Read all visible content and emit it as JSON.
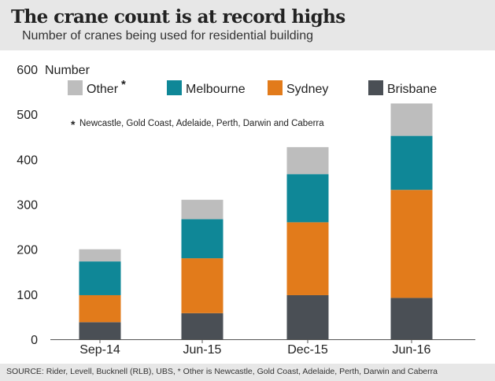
{
  "header": {
    "title": "The crane count is at record highs",
    "subtitle": "Number of cranes being used for residential building"
  },
  "footer": {
    "source": "SOURCE: Rider, Levell, Bucknell (RLB), UBS, * Other is Newcastle, Gold Coast, Adelaide, Perth, Darwin and Caberra"
  },
  "chart_data": {
    "type": "bar",
    "stacked": true,
    "title": "The crane count is at record highs",
    "subtitle": "Number of cranes being used for residential building",
    "ylabel": "Number",
    "xlabel": "",
    "ylim": [
      0,
      600
    ],
    "yticks": [
      0,
      100,
      200,
      300,
      400,
      500,
      600
    ],
    "grid": false,
    "categories": [
      "Sep-14",
      "Jun-15",
      "Dec-15",
      "Jun-16"
    ],
    "series": [
      {
        "name": "Brisbane",
        "color": "#4a4f55",
        "values": [
          38,
          58,
          98,
          92
        ]
      },
      {
        "name": "Sydney",
        "color": "#e27b1b",
        "values": [
          60,
          122,
          162,
          240
        ]
      },
      {
        "name": "Melbourne",
        "color": "#0f8797",
        "values": [
          75,
          87,
          107,
          120
        ]
      },
      {
        "name": "Other",
        "color": "#bdbdbd",
        "values": [
          27,
          43,
          60,
          72
        ]
      }
    ],
    "legend": {
      "placement": "top-left",
      "order": [
        "Other",
        "Melbourne",
        "Sydney",
        "Brisbane"
      ],
      "other_marker": "*",
      "footnote": "Newcastle, Gold Coast, Adelaide, Perth, Darwin and Caberra",
      "footnote_marker": "*"
    }
  }
}
